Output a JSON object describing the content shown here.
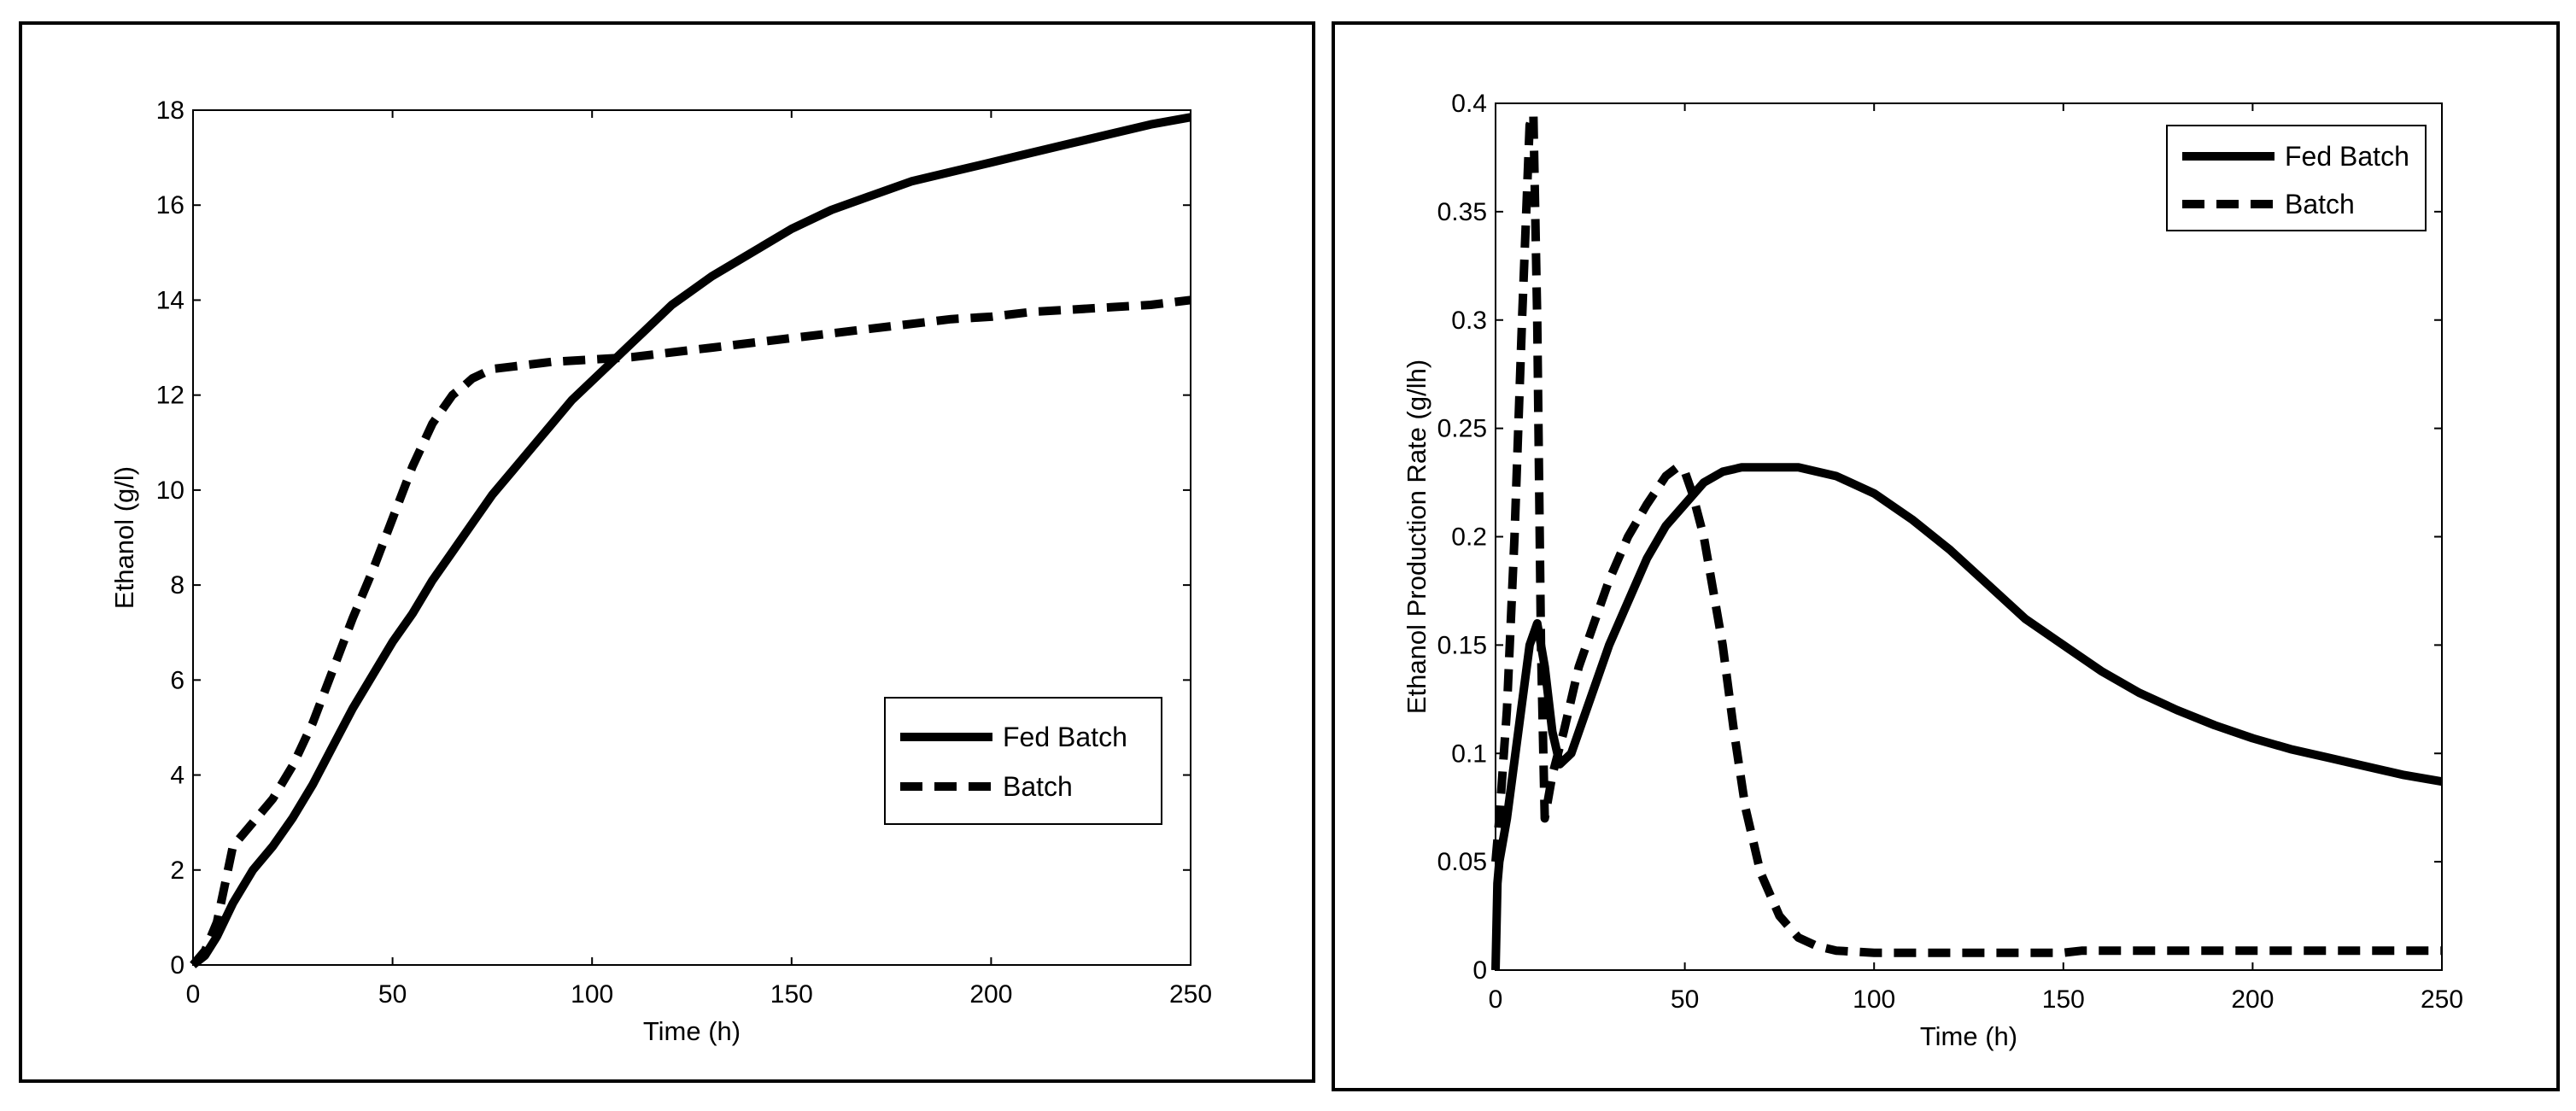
{
  "chart_data": [
    {
      "type": "line",
      "title": "",
      "xlabel": "Time (h)",
      "ylabel": "Ethanol (g/l)",
      "xlim": [
        0,
        250
      ],
      "ylim": [
        0,
        18
      ],
      "xticks": [
        0,
        50,
        100,
        150,
        200,
        250
      ],
      "yticks": [
        0,
        2,
        4,
        6,
        8,
        10,
        12,
        14,
        16,
        18
      ],
      "grid": false,
      "legend_position": "bottom-right",
      "series": [
        {
          "name": "Fed Batch",
          "style": "solid",
          "x": [
            0,
            3,
            6,
            10,
            15,
            20,
            25,
            30,
            35,
            40,
            45,
            50,
            55,
            60,
            65,
            70,
            75,
            80,
            85,
            90,
            95,
            100,
            105,
            110,
            115,
            120,
            125,
            130,
            140,
            150,
            160,
            170,
            180,
            190,
            200,
            210,
            220,
            230,
            240,
            250
          ],
          "y": [
            0,
            0.2,
            0.6,
            1.3,
            2.0,
            2.5,
            3.1,
            3.8,
            4.6,
            5.4,
            6.1,
            6.8,
            7.4,
            8.1,
            8.7,
            9.3,
            9.9,
            10.4,
            10.9,
            11.4,
            11.9,
            12.3,
            12.7,
            13.1,
            13.5,
            13.9,
            14.2,
            14.5,
            15.0,
            15.5,
            15.9,
            16.2,
            16.5,
            16.7,
            16.9,
            17.1,
            17.3,
            17.5,
            17.7,
            17.85
          ]
        },
        {
          "name": "Batch",
          "style": "dashed",
          "x": [
            0,
            3,
            6,
            8,
            10,
            12,
            15,
            20,
            25,
            30,
            35,
            40,
            45,
            50,
            55,
            60,
            65,
            68,
            70,
            75,
            80,
            90,
            100,
            110,
            120,
            130,
            140,
            150,
            160,
            170,
            180,
            190,
            200,
            210,
            220,
            230,
            240,
            250
          ],
          "y": [
            0,
            0.3,
            0.9,
            1.7,
            2.5,
            2.7,
            3.0,
            3.5,
            4.2,
            5.1,
            6.2,
            7.3,
            8.3,
            9.4,
            10.5,
            11.4,
            12.0,
            12.2,
            12.35,
            12.55,
            12.6,
            12.7,
            12.75,
            12.8,
            12.9,
            13.0,
            13.1,
            13.2,
            13.3,
            13.4,
            13.5,
            13.6,
            13.65,
            13.75,
            13.8,
            13.85,
            13.9,
            14.0
          ]
        }
      ]
    },
    {
      "type": "line",
      "title": "",
      "xlabel": "Time (h)",
      "ylabel": "Ethanol Production Rate (g/lh)",
      "xlim": [
        0,
        250
      ],
      "ylim": [
        0,
        0.4
      ],
      "xticks": [
        0,
        50,
        100,
        150,
        200,
        250
      ],
      "yticks": [
        0,
        0.05,
        0.1,
        0.15,
        0.2,
        0.25,
        0.3,
        0.35,
        0.4
      ],
      "grid": false,
      "legend_position": "top-right",
      "series": [
        {
          "name": "Fed Batch",
          "style": "solid",
          "x": [
            0,
            0.5,
            1,
            3,
            6,
            9,
            11,
            13,
            15,
            17,
            20,
            25,
            30,
            35,
            40,
            45,
            50,
            55,
            60,
            65,
            70,
            80,
            90,
            100,
            110,
            120,
            130,
            140,
            150,
            160,
            170,
            180,
            190,
            200,
            210,
            220,
            230,
            240,
            250
          ],
          "y": [
            0,
            0.04,
            0.05,
            0.07,
            0.11,
            0.15,
            0.16,
            0.14,
            0.11,
            0.095,
            0.1,
            0.125,
            0.15,
            0.17,
            0.19,
            0.205,
            0.215,
            0.225,
            0.23,
            0.232,
            0.232,
            0.232,
            0.228,
            0.22,
            0.208,
            0.194,
            0.178,
            0.162,
            0.15,
            0.138,
            0.128,
            0.12,
            0.113,
            0.107,
            0.102,
            0.098,
            0.094,
            0.09,
            0.087
          ]
        },
        {
          "name": "Batch",
          "style": "dashed",
          "x": [
            0,
            1,
            3,
            5,
            7,
            9,
            10,
            11,
            12,
            13,
            15,
            18,
            22,
            26,
            30,
            35,
            40,
            45,
            48,
            50,
            52,
            55,
            58,
            60,
            63,
            66,
            70,
            75,
            80,
            85,
            90,
            100,
            110,
            130,
            150,
            155,
            160,
            200,
            250
          ],
          "y": [
            0.05,
            0.07,
            0.12,
            0.2,
            0.3,
            0.39,
            0.395,
            0.3,
            0.15,
            0.07,
            0.09,
            0.11,
            0.14,
            0.16,
            0.18,
            0.2,
            0.215,
            0.228,
            0.232,
            0.23,
            0.22,
            0.2,
            0.17,
            0.15,
            0.11,
            0.075,
            0.045,
            0.025,
            0.015,
            0.011,
            0.009,
            0.008,
            0.008,
            0.008,
            0.008,
            0.009,
            0.009,
            0.009,
            0.009
          ]
        }
      ]
    }
  ]
}
